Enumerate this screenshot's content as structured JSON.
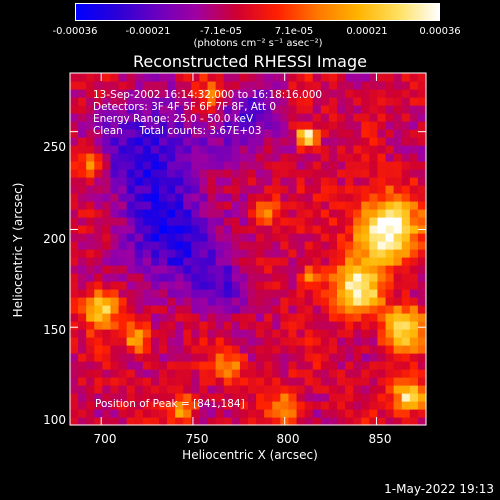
{
  "colorbar": {
    "ticks": [
      "-0.00036",
      "-0.00021",
      "-7.1e-05",
      "7.1e-05",
      "0.00021",
      "0.00036"
    ],
    "units": "(photons cm⁻² s⁻¹ asec⁻²)",
    "colormap": [
      "#0000ff",
      "#2a00d8",
      "#6a00c0",
      "#a000a0",
      "#d00030",
      "#ff2000",
      "#ff7800",
      "#ffb400",
      "#ffe060",
      "#ffffff"
    ],
    "range": [
      -0.00036,
      0.00036
    ]
  },
  "chart_data": {
    "type": "heatmap",
    "title": "Reconstructed RHESSI Image",
    "xlabel": "Heliocentric X (arcsec)",
    "ylabel": "Heliocentric Y (arcsec)",
    "xlim": [
      683,
      877
    ],
    "ylim": [
      100,
      280
    ],
    "xticks": [
      "700",
      "750",
      "800",
      "850"
    ],
    "yticks": [
      "100",
      "150",
      "200",
      "250"
    ],
    "annotations": [
      "13-Sep-2002 16:14:32.000 to 16:18:16.000",
      "Detectors: 3F 4F 5F 6F 7F 8F, Att 0",
      "Energy Range: 25.0 - 50.0 keV",
      "Clean     Total counts: 3.67E+03"
    ],
    "peak_label": "Position of Peak = [841,184]",
    "peak": [
      841,
      184
    ],
    "bright_sources": [
      {
        "x": 855,
        "y": 200,
        "sigma": 12,
        "level": 1.0
      },
      {
        "x": 840,
        "y": 170,
        "sigma": 9,
        "level": 0.85
      },
      {
        "x": 865,
        "y": 150,
        "sigma": 8,
        "level": 0.75
      },
      {
        "x": 812,
        "y": 248,
        "sigma": 4,
        "level": 0.9
      },
      {
        "x": 868,
        "y": 115,
        "sigma": 6,
        "level": 0.85
      },
      {
        "x": 700,
        "y": 160,
        "sigma": 7,
        "level": 0.7
      },
      {
        "x": 720,
        "y": 145,
        "sigma": 5,
        "level": 0.65
      },
      {
        "x": 695,
        "y": 235,
        "sigma": 6,
        "level": 0.55
      },
      {
        "x": 760,
        "y": 268,
        "sigma": 5,
        "level": 0.5
      },
      {
        "x": 790,
        "y": 210,
        "sigma": 5,
        "level": 0.5
      },
      {
        "x": 770,
        "y": 130,
        "sigma": 6,
        "level": 0.45
      },
      {
        "x": 800,
        "y": 110,
        "sigma": 6,
        "level": 0.5
      },
      {
        "x": 745,
        "y": 108,
        "sigma": 5,
        "level": 0.5
      },
      {
        "x": 815,
        "y": 175,
        "sigma": 5,
        "level": 0.5
      }
    ],
    "dim_regions": [
      {
        "x": 725,
        "y": 240,
        "sigma": 18,
        "level": -0.6
      },
      {
        "x": 740,
        "y": 195,
        "sigma": 18,
        "level": -0.6
      },
      {
        "x": 780,
        "y": 255,
        "sigma": 12,
        "level": -0.45
      },
      {
        "x": 770,
        "y": 170,
        "sigma": 10,
        "level": -0.35
      }
    ]
  },
  "timestamp": "1-May-2022 19:13"
}
